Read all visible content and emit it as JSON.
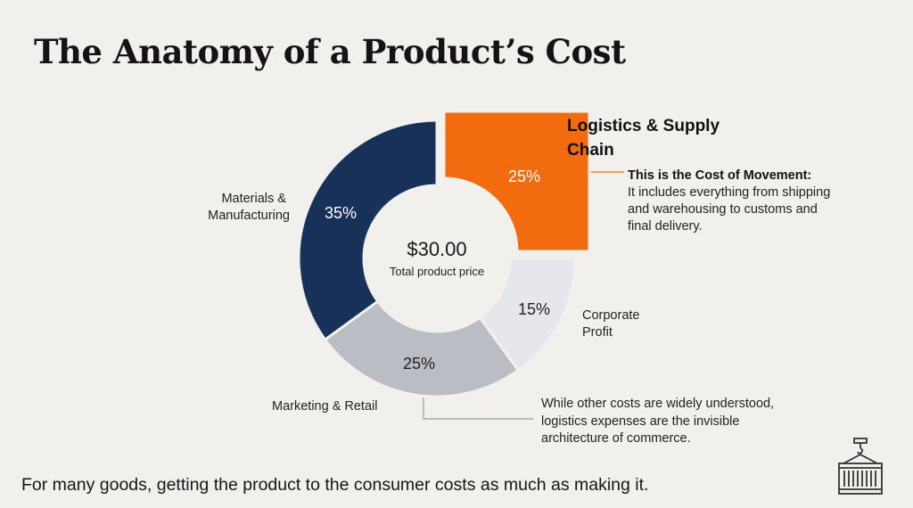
{
  "title": "The Anatomy of a Product’s Cost",
  "chart_data": {
    "type": "pie",
    "style": "donut",
    "center_value": "$30.00",
    "center_label": "Total product price",
    "slices": [
      {
        "name": "Logistics & Supply Chain",
        "value": 25,
        "label": "25%",
        "color": "#f26b0f",
        "highlight": true
      },
      {
        "name": "Corporate Profit",
        "value": 15,
        "label": "15%",
        "color": "#e6e7ec"
      },
      {
        "name": "Marketing & Retail",
        "value": 25,
        "label": "25%",
        "color": "#bbbdc4"
      },
      {
        "name": "Materials & Manufacturing",
        "value": 35,
        "label": "35%",
        "color": "#183159"
      }
    ],
    "legend": "none"
  },
  "highlight_title": "Logistics & Supply Chain",
  "label_materials": "Materials & Manufacturing",
  "label_marketing": "Marketing & Retail",
  "label_profit": "Corporate Profit",
  "callout_logistics": {
    "heading": "This is the Cost of Movement:",
    "body": "It includes everything from shipping and warehousing to customs and final delivery."
  },
  "callout_other": "While other costs are widely understood, logistics expenses are the invisible architecture of commerce.",
  "footer": "For many goods, getting the product to the consumer costs as much as making it.",
  "icon": "shipping-container-crane-icon",
  "colors": {
    "accent": "#f26b0f",
    "navy": "#183159",
    "background": "#f1f0ec"
  }
}
